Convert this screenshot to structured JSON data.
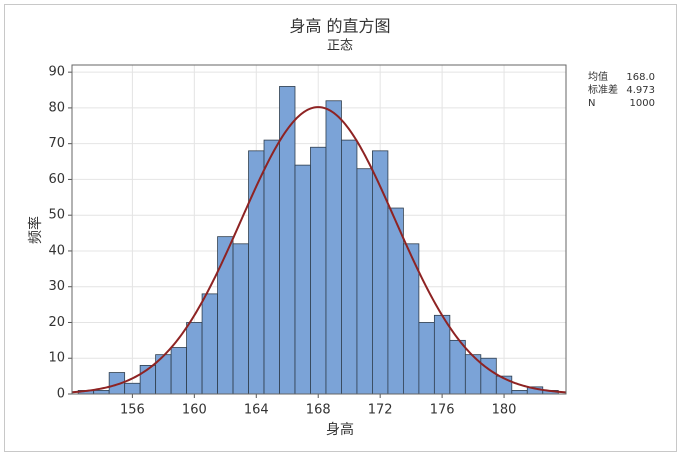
{
  "chart_data": {
    "type": "histogram",
    "title": "身高 的直方图",
    "subtitle": "正态",
    "x_label": "身高",
    "y_label": "频率",
    "bins": [
      152.5,
      153.5,
      154.5,
      155.5,
      156.5,
      157.5,
      158.5,
      159.5,
      160.5,
      161.5,
      162.5,
      163.5,
      164.5,
      165.5,
      166.5,
      167.5,
      168.5,
      169.5,
      170.5,
      171.5,
      172.5,
      173.5,
      174.5,
      175.5,
      176.5,
      177.5,
      178.5,
      179.5,
      180.5,
      181.5,
      182.5,
      183.5
    ],
    "counts": [
      1,
      1,
      6,
      3,
      8,
      11,
      13,
      20,
      28,
      44,
      42,
      68,
      71,
      86,
      64,
      69,
      82,
      71,
      63,
      68,
      52,
      42,
      20,
      22,
      15,
      11,
      10,
      5,
      1,
      2,
      1
    ],
    "color": "#7ba3d7",
    "curve_color": "#8e2323",
    "xlim": [
      152.1,
      184
    ],
    "ylim": [
      0,
      92
    ],
    "xticks": [
      156,
      160,
      164,
      168,
      172,
      176,
      180
    ],
    "yticks": [
      0,
      10,
      20,
      30,
      40,
      50,
      60,
      70,
      80,
      90
    ],
    "grid": true,
    "stats": [
      {
        "name": "均值",
        "value": 168,
        "value_label": "168.0"
      },
      {
        "name": "标准差",
        "value": 4.973
      },
      {
        "name": "N",
        "value": 1000
      }
    ]
  }
}
